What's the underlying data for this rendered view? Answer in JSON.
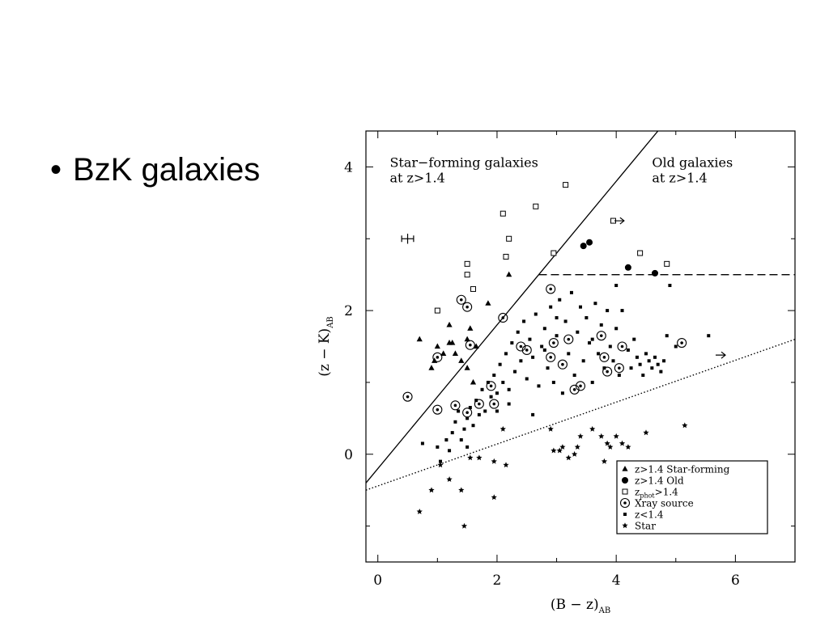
{
  "slide": {
    "bullet_symbol": "•",
    "bullet_text": "BzK galaxies"
  },
  "chart_data": {
    "type": "scatter",
    "title": "",
    "xlabel": "(B − z)",
    "xlabel_sub": "AB",
    "ylabel": "(z − K)",
    "ylabel_sub": "AB",
    "xlim": [
      -0.2,
      7.0
    ],
    "ylim": [
      -1.5,
      4.5
    ],
    "xticks": [
      0,
      2,
      4,
      6
    ],
    "yticks": [
      0,
      2,
      4
    ],
    "grid": false,
    "legend_position": "bottom-right",
    "annotations": [
      {
        "name": "star-forming-label",
        "lines": [
          "Star−forming galaxies",
          "at z>1.4"
        ],
        "x": 0.2,
        "y": 4.0
      },
      {
        "name": "old-galaxies-label",
        "lines": [
          "Old galaxies",
          "at z>1.4"
        ],
        "x": 4.6,
        "y": 4.0
      }
    ],
    "lines": [
      {
        "name": "sf-boundary",
        "style": "solid",
        "x": [
          -0.2,
          4.8
        ],
        "y": [
          -0.4,
          4.6
        ]
      },
      {
        "name": "old-boundary",
        "style": "dashed",
        "x": [
          2.7,
          7.0
        ],
        "y": [
          2.5,
          2.5
        ]
      },
      {
        "name": "star-boundary",
        "style": "dotted",
        "x": [
          -0.2,
          7.0
        ],
        "y": [
          -0.5,
          1.6
        ]
      }
    ],
    "error_bar": {
      "x": 0.5,
      "y": 3.0,
      "xerr": 0.1,
      "yerr": 0.07
    },
    "series": [
      {
        "name": "z>1.4 Star-forming",
        "marker": "triangle",
        "points": [
          [
            0.9,
            1.2
          ],
          [
            0.95,
            1.3
          ],
          [
            1.0,
            1.5
          ],
          [
            1.1,
            1.4
          ],
          [
            1.2,
            1.55
          ],
          [
            1.25,
            1.55
          ],
          [
            1.4,
            1.3
          ],
          [
            1.5,
            1.6
          ],
          [
            1.55,
            1.75
          ],
          [
            1.5,
            1.2
          ],
          [
            1.65,
            1.5
          ],
          [
            1.85,
            2.1
          ],
          [
            2.2,
            2.5
          ],
          [
            1.6,
            1.0
          ],
          [
            1.2,
            1.8
          ],
          [
            0.7,
            1.6
          ],
          [
            1.3,
            1.4
          ]
        ]
      },
      {
        "name": "z>1.4 Old",
        "marker": "filled-circle",
        "points": [
          [
            3.45,
            2.9
          ],
          [
            3.55,
            2.95
          ],
          [
            4.2,
            2.6
          ],
          [
            4.65,
            2.52
          ]
        ]
      },
      {
        "name": "zphot>1.4",
        "legend_main": "z",
        "legend_sub": "phot",
        "legend_tail": ">1.4",
        "marker": "open-square",
        "points": [
          [
            1.0,
            2.0
          ],
          [
            1.5,
            2.65
          ],
          [
            1.5,
            2.5
          ],
          [
            1.6,
            2.3
          ],
          [
            2.1,
            3.35
          ],
          [
            2.15,
            2.75
          ],
          [
            2.2,
            3.0
          ],
          [
            2.65,
            3.45
          ],
          [
            2.95,
            2.8
          ],
          [
            3.15,
            3.75
          ],
          [
            3.95,
            3.25
          ],
          [
            4.4,
            2.8
          ],
          [
            4.85,
            2.65
          ]
        ]
      },
      {
        "name": "Xray source",
        "marker": "open-circle",
        "points": [
          [
            0.5,
            0.8
          ],
          [
            1.0,
            1.35
          ],
          [
            1.0,
            0.62
          ],
          [
            1.3,
            0.68
          ],
          [
            1.4,
            2.15
          ],
          [
            1.5,
            2.05
          ],
          [
            1.5,
            0.58
          ],
          [
            1.55,
            1.52
          ],
          [
            1.7,
            0.7
          ],
          [
            1.9,
            0.95
          ],
          [
            1.95,
            0.7
          ],
          [
            2.1,
            1.9
          ],
          [
            2.4,
            1.5
          ],
          [
            2.5,
            1.45
          ],
          [
            2.9,
            2.3
          ],
          [
            2.9,
            1.35
          ],
          [
            2.95,
            1.55
          ],
          [
            3.1,
            1.25
          ],
          [
            3.2,
            1.6
          ],
          [
            3.3,
            0.9
          ],
          [
            3.4,
            0.95
          ],
          [
            3.75,
            1.65
          ],
          [
            3.8,
            1.35
          ],
          [
            3.85,
            1.15
          ],
          [
            4.05,
            1.2
          ],
          [
            4.1,
            1.5
          ],
          [
            5.1,
            1.55
          ]
        ]
      },
      {
        "name": "z<1.4",
        "marker": "filled-square",
        "points": [
          [
            0.75,
            0.15
          ],
          [
            1.0,
            0.1
          ],
          [
            1.05,
            -0.1
          ],
          [
            1.15,
            0.2
          ],
          [
            1.2,
            0.05
          ],
          [
            1.25,
            0.3
          ],
          [
            1.3,
            0.45
          ],
          [
            1.35,
            0.6
          ],
          [
            1.4,
            0.2
          ],
          [
            1.45,
            0.35
          ],
          [
            1.5,
            0.5
          ],
          [
            1.55,
            0.65
          ],
          [
            1.6,
            0.4
          ],
          [
            1.65,
            0.75
          ],
          [
            1.7,
            0.55
          ],
          [
            1.75,
            0.9
          ],
          [
            1.8,
            0.6
          ],
          [
            1.85,
            1.0
          ],
          [
            1.9,
            0.8
          ],
          [
            1.95,
            1.1
          ],
          [
            2.0,
            0.85
          ],
          [
            2.05,
            1.25
          ],
          [
            2.1,
            1.0
          ],
          [
            2.15,
            1.4
          ],
          [
            2.2,
            0.9
          ],
          [
            2.25,
            1.55
          ],
          [
            2.3,
            1.15
          ],
          [
            2.35,
            1.7
          ],
          [
            2.4,
            1.3
          ],
          [
            2.45,
            1.85
          ],
          [
            2.5,
            1.05
          ],
          [
            2.55,
            1.6
          ],
          [
            2.6,
            1.35
          ],
          [
            2.65,
            1.95
          ],
          [
            2.7,
            0.95
          ],
          [
            2.75,
            1.5
          ],
          [
            2.8,
            1.75
          ],
          [
            2.85,
            1.2
          ],
          [
            2.9,
            2.05
          ],
          [
            2.95,
            1.0
          ],
          [
            3.0,
            1.65
          ],
          [
            3.05,
            2.15
          ],
          [
            3.1,
            0.85
          ],
          [
            3.15,
            1.85
          ],
          [
            3.2,
            1.4
          ],
          [
            3.25,
            2.25
          ],
          [
            3.3,
            1.1
          ],
          [
            3.35,
            1.7
          ],
          [
            3.4,
            2.05
          ],
          [
            3.45,
            1.3
          ],
          [
            3.5,
            1.9
          ],
          [
            3.55,
            1.55
          ],
          [
            3.6,
            1.0
          ],
          [
            3.65,
            2.1
          ],
          [
            3.7,
            1.4
          ],
          [
            3.75,
            1.8
          ],
          [
            3.8,
            1.2
          ],
          [
            3.85,
            2.0
          ],
          [
            3.9,
            1.5
          ],
          [
            3.95,
            1.3
          ],
          [
            4.0,
            1.75
          ],
          [
            4.05,
            1.1
          ],
          [
            4.1,
            2.0
          ],
          [
            4.2,
            1.45
          ],
          [
            4.25,
            1.2
          ],
          [
            4.3,
            1.6
          ],
          [
            4.35,
            1.35
          ],
          [
            4.4,
            1.25
          ],
          [
            4.45,
            1.1
          ],
          [
            4.5,
            1.4
          ],
          [
            4.55,
            1.3
          ],
          [
            4.6,
            1.2
          ],
          [
            4.65,
            1.35
          ],
          [
            4.7,
            1.25
          ],
          [
            4.75,
            1.15
          ],
          [
            4.8,
            1.3
          ],
          [
            4.9,
            2.35
          ],
          [
            5.0,
            1.5
          ],
          [
            4.85,
            1.65
          ],
          [
            5.55,
            1.65
          ],
          [
            2.0,
            0.6
          ],
          [
            2.2,
            0.7
          ],
          [
            1.5,
            0.1
          ],
          [
            2.6,
            0.55
          ],
          [
            3.0,
            1.9
          ],
          [
            3.6,
            1.6
          ],
          [
            4.0,
            2.35
          ],
          [
            2.8,
            1.45
          ]
        ]
      },
      {
        "name": "Star",
        "marker": "star",
        "points": [
          [
            0.7,
            -0.8
          ],
          [
            0.9,
            -0.5
          ],
          [
            1.05,
            -0.15
          ],
          [
            1.2,
            -0.35
          ],
          [
            1.4,
            -0.5
          ],
          [
            1.45,
            -1.0
          ],
          [
            1.7,
            -0.05
          ],
          [
            1.95,
            -0.1
          ],
          [
            1.95,
            -0.6
          ],
          [
            2.15,
            -0.15
          ],
          [
            2.9,
            0.35
          ],
          [
            2.95,
            0.05
          ],
          [
            3.05,
            0.05
          ],
          [
            3.1,
            0.1
          ],
          [
            3.2,
            -0.05
          ],
          [
            3.3,
            0.0
          ],
          [
            3.35,
            0.1
          ],
          [
            3.4,
            0.25
          ],
          [
            3.6,
            0.35
          ],
          [
            3.75,
            0.25
          ],
          [
            3.8,
            -0.1
          ],
          [
            3.85,
            0.15
          ],
          [
            3.9,
            0.1
          ],
          [
            4.0,
            0.25
          ],
          [
            4.1,
            0.15
          ],
          [
            4.2,
            0.1
          ],
          [
            4.5,
            0.3
          ],
          [
            5.15,
            0.4
          ],
          [
            2.1,
            0.35
          ],
          [
            1.55,
            -0.05
          ]
        ]
      }
    ],
    "arrows": [
      {
        "name": "arrow-old",
        "x": 4.05,
        "y": 3.25
      },
      {
        "name": "arrow-sf",
        "x": 5.75,
        "y": 1.38
      }
    ]
  }
}
